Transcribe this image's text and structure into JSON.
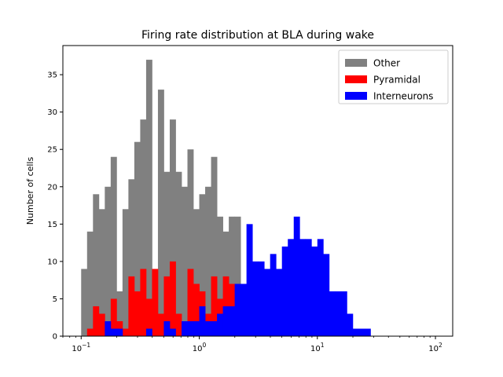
{
  "chart_data": {
    "type": "bar",
    "title": "Firing rate distribution at BLA during wake",
    "xlabel": "",
    "ylabel": "Number of cells",
    "xscale": "log",
    "xlim": [
      0.07,
      140
    ],
    "ylim": [
      0,
      38.9
    ],
    "x_ticks": [
      {
        "value": 0.1,
        "base": "10",
        "exp": "−1"
      },
      {
        "value": 1,
        "base": "10",
        "exp": "0"
      },
      {
        "value": 10,
        "base": "10",
        "exp": "1"
      },
      {
        "value": 100,
        "base": "10",
        "exp": "2"
      }
    ],
    "y_ticks": [
      0,
      5,
      10,
      15,
      20,
      25,
      30,
      35
    ],
    "bin_edges_log10": {
      "start": -1,
      "step": 0.05,
      "count": 54
    },
    "legend_position": "top-right",
    "series": [
      {
        "name": "Other",
        "color": "#808080",
        "values": [
          9,
          14,
          19,
          17,
          20,
          24,
          6,
          17,
          21,
          26,
          29,
          37,
          6,
          33,
          22,
          29,
          22,
          20,
          25,
          17,
          19,
          20,
          24,
          16,
          14,
          16,
          16,
          0,
          0,
          0,
          0,
          0,
          0,
          0,
          0,
          0,
          0,
          0,
          0,
          0,
          0,
          0,
          0,
          0,
          0,
          0,
          0,
          0,
          0,
          0,
          0,
          0,
          0,
          0
        ]
      },
      {
        "name": "Pyramidal",
        "color": "#ff0000",
        "values": [
          0,
          1,
          4,
          3,
          1,
          5,
          2,
          1,
          8,
          6,
          9,
          5,
          9,
          3,
          8,
          10,
          3,
          2,
          9,
          7,
          6,
          3,
          8,
          5,
          8,
          7,
          5,
          0,
          0,
          0,
          0,
          0,
          0,
          0,
          0,
          0,
          0,
          0,
          0,
          0,
          0,
          0,
          0,
          0,
          0,
          0,
          0,
          0,
          0,
          0,
          0,
          0,
          0,
          0
        ]
      },
      {
        "name": "Interneurons",
        "color": "#0000ff",
        "values": [
          0,
          0,
          0,
          0,
          2,
          1,
          1,
          0,
          0,
          0,
          0,
          1,
          0,
          0,
          2,
          1,
          0,
          2,
          2,
          2,
          4,
          2,
          2,
          3,
          4,
          4,
          7,
          7,
          15,
          10,
          10,
          9,
          11,
          9,
          12,
          13,
          16,
          13,
          13,
          12,
          13,
          11,
          6,
          6,
          6,
          3,
          1,
          1,
          1,
          0,
          0,
          0,
          0,
          0
        ]
      }
    ]
  }
}
